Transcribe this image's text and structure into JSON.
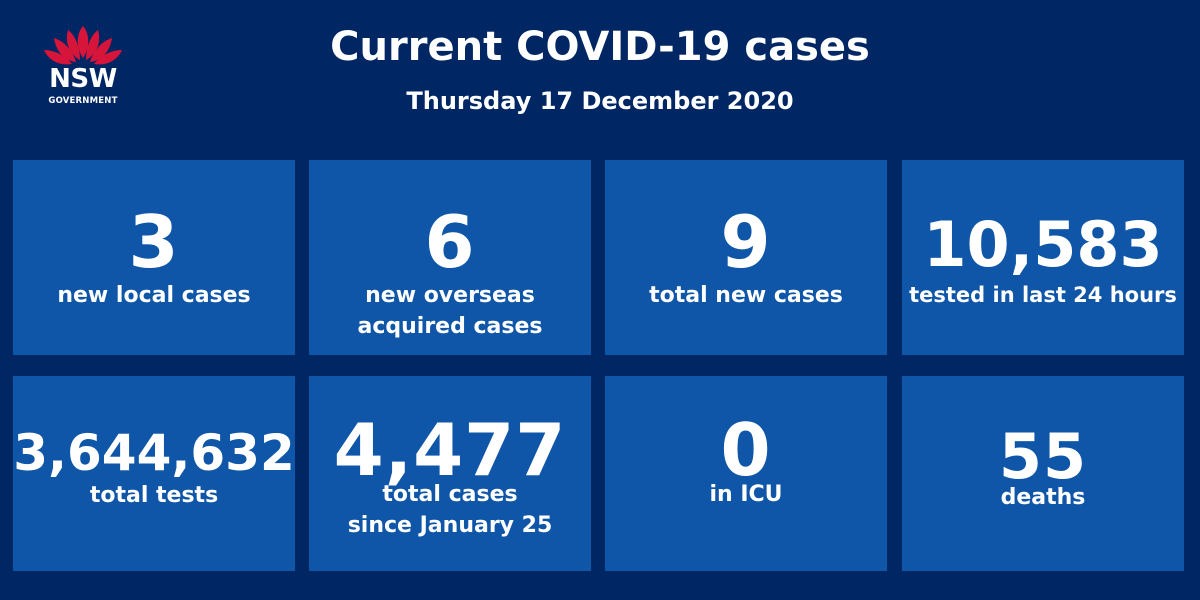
{
  "header": {
    "logo_wordmark": "NSW",
    "logo_subtext": "GOVERNMENT",
    "title": "Current COVID-19 cases",
    "date": "Thursday 17 December 2020"
  },
  "stats": [
    {
      "value": "3",
      "label": "new local cases"
    },
    {
      "value": "6",
      "label": "new overseas\nacquired cases"
    },
    {
      "value": "9",
      "label": "total new cases"
    },
    {
      "value": "10,583",
      "label": "tested in last 24 hours"
    },
    {
      "value": "3,644,632",
      "label": "total tests"
    },
    {
      "value": "4,477",
      "label": "total cases\nsince January 25"
    },
    {
      "value": "0",
      "label": "in ICU"
    },
    {
      "value": "55",
      "label": "deaths"
    }
  ],
  "colors": {
    "background": "#002664",
    "tile": "#0f56a8",
    "waratah_red": "#d7153a",
    "text": "#ffffff"
  }
}
